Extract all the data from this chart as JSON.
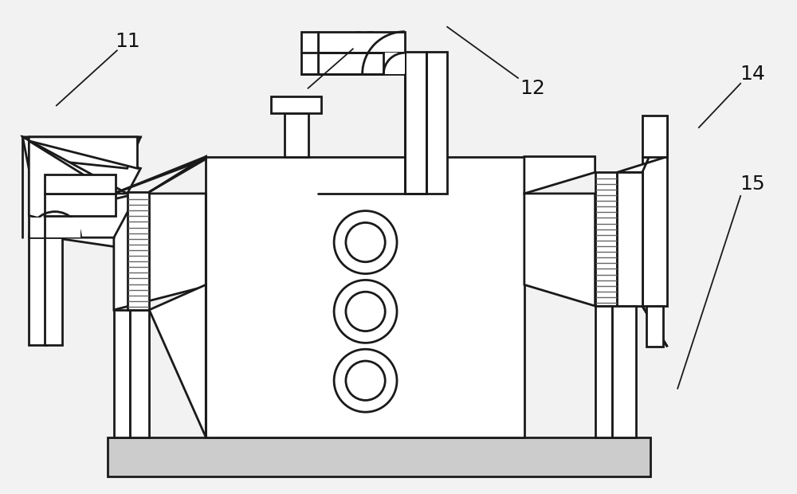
{
  "bg_color": "#f2f2f2",
  "lc": "#1a1a1a",
  "lw": 2.0,
  "hatch_color": "#666666",
  "label_fontsize": 18,
  "label_color": "#111111"
}
